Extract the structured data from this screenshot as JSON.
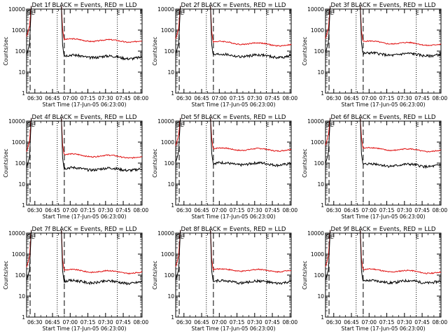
{
  "common": {
    "ylabel": "Counts/sec",
    "xlabel": "Start Time (17-Jun-05 06:23:00)",
    "x_ticks": [
      "06:30",
      "06:45",
      "07:00",
      "07:15",
      "07:30",
      "07:45",
      "08:00"
    ],
    "y_ticks": [
      "1",
      "10",
      "100",
      "1000",
      "10000"
    ],
    "markers": {
      "S": "S",
      "E": "E"
    },
    "colors": {
      "events": "#000000",
      "lld": "#e01010"
    }
  },
  "chart_data": [
    {
      "type": "line",
      "title": "Det 1f BLACK = Events, RED = LLD",
      "ylim": [
        1,
        10000
      ],
      "xlim_minutes": [
        0,
        98
      ],
      "series": [
        {
          "name": "Events",
          "plateau": 60,
          "end": 48
        },
        {
          "name": "LLD",
          "plateau": 350,
          "end": 290
        }
      ]
    },
    {
      "type": "line",
      "title": "Det 2f BLACK = Events, RED = LLD",
      "ylim": [
        1,
        10000
      ],
      "xlim_minutes": [
        0,
        98
      ],
      "series": [
        {
          "name": "Events",
          "plateau": 65,
          "end": 55
        },
        {
          "name": "LLD",
          "plateau": 270,
          "end": 190
        }
      ]
    },
    {
      "type": "line",
      "title": "Det 3f BLACK = Events, RED = LLD",
      "ylim": [
        1,
        10000
      ],
      "xlim_minutes": [
        0,
        98
      ],
      "series": [
        {
          "name": "Events",
          "plateau": 75,
          "end": 65
        },
        {
          "name": "LLD",
          "plateau": 280,
          "end": 200
        }
      ]
    },
    {
      "type": "line",
      "title": "Det 4f BLACK = Events, RED = LLD",
      "ylim": [
        1,
        10000
      ],
      "xlim_minutes": [
        0,
        98
      ],
      "series": [
        {
          "name": "Events",
          "plateau": 55,
          "end": 50
        },
        {
          "name": "LLD",
          "plateau": 250,
          "end": 190
        }
      ]
    },
    {
      "type": "line",
      "title": "Det 5f BLACK = Events, RED = LLD",
      "ylim": [
        1,
        10000
      ],
      "xlim_minutes": [
        0,
        98
      ],
      "series": [
        {
          "name": "Events",
          "plateau": 95,
          "end": 90
        },
        {
          "name": "LLD",
          "plateau": 480,
          "end": 420
        }
      ]
    },
    {
      "type": "line",
      "title": "Det 6f BLACK = Events, RED = LLD",
      "ylim": [
        1,
        10000
      ],
      "xlim_minutes": [
        0,
        98
      ],
      "series": [
        {
          "name": "Events",
          "plateau": 85,
          "end": 75
        },
        {
          "name": "LLD",
          "plateau": 500,
          "end": 380
        }
      ]
    },
    {
      "type": "line",
      "title": "Det 7f BLACK = Events, RED = LLD",
      "ylim": [
        1,
        10000
      ],
      "xlim_minutes": [
        0,
        98
      ],
      "series": [
        {
          "name": "Events",
          "plateau": 50,
          "end": 45
        },
        {
          "name": "LLD",
          "plateau": 170,
          "end": 130
        }
      ]
    },
    {
      "type": "line",
      "title": "Det 8f BLACK = Events, RED = LLD",
      "ylim": [
        1,
        10000
      ],
      "xlim_minutes": [
        0,
        98
      ],
      "series": [
        {
          "name": "Events",
          "plateau": 50,
          "end": 45
        },
        {
          "name": "LLD",
          "plateau": 180,
          "end": 160
        }
      ]
    },
    {
      "type": "line",
      "title": "Det 9f BLACK = Events, RED = LLD",
      "ylim": [
        1,
        10000
      ],
      "xlim_minutes": [
        0,
        98
      ],
      "series": [
        {
          "name": "Events",
          "plateau": 50,
          "end": 48
        },
        {
          "name": "LLD",
          "plateau": 180,
          "end": 130
        }
      ]
    }
  ]
}
